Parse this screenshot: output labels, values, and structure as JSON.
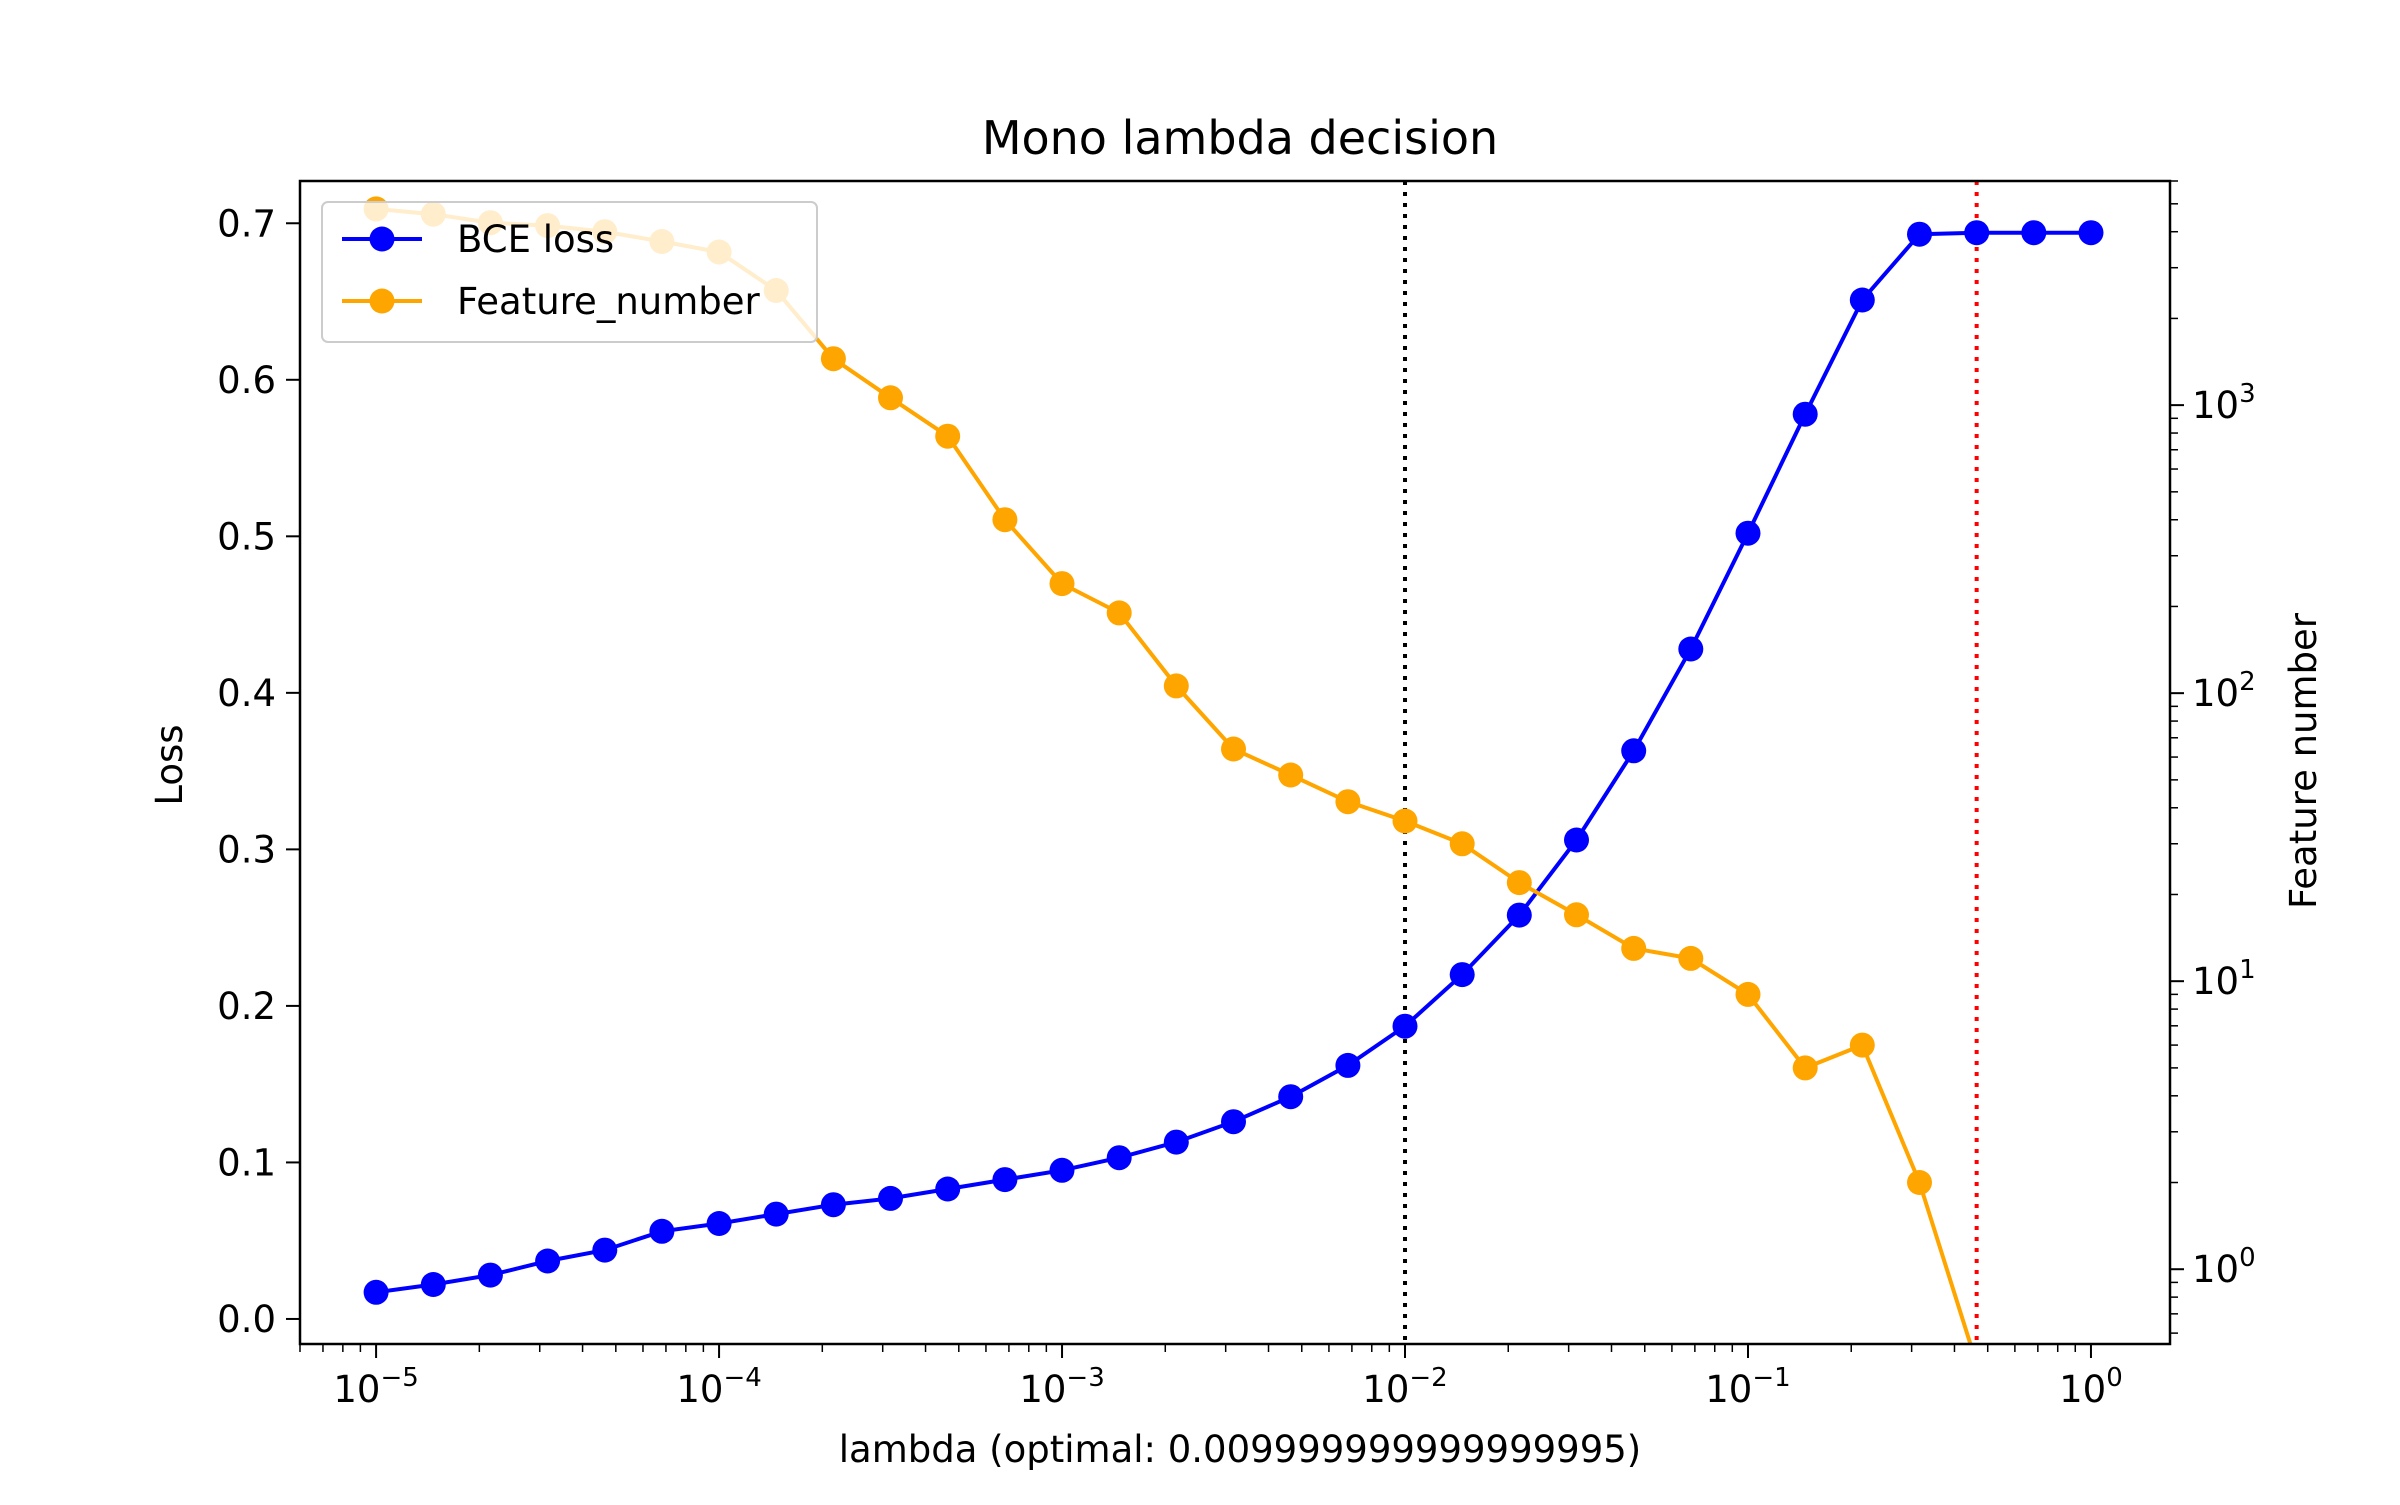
{
  "chart_data": {
    "type": "line",
    "title": "Mono lambda decision",
    "xlabel": "lambda (optimal: 0.009999999999999995)",
    "ylabel_left": "Loss",
    "ylabel_right": "Feature number",
    "xscale": "log",
    "xlim": [
      6e-06,
      1.7
    ],
    "ylim_left": [
      -0.016,
      0.727
    ],
    "yscale_right": "log",
    "ylim_right": [
      0.55,
      6000
    ],
    "x_ticks": [
      {
        "value": 1e-05,
        "base": "10",
        "exp": "−5"
      },
      {
        "value": 0.0001,
        "base": "10",
        "exp": "−4"
      },
      {
        "value": 0.001,
        "base": "10",
        "exp": "−3"
      },
      {
        "value": 0.01,
        "base": "10",
        "exp": "−2"
      },
      {
        "value": 0.1,
        "base": "10",
        "exp": "−1"
      },
      {
        "value": 1,
        "base": "10",
        "exp": "0"
      }
    ],
    "y_left_ticks": [
      {
        "value": 0.0,
        "label": "0.0"
      },
      {
        "value": 0.1,
        "label": "0.1"
      },
      {
        "value": 0.2,
        "label": "0.2"
      },
      {
        "value": 0.3,
        "label": "0.3"
      },
      {
        "value": 0.4,
        "label": "0.4"
      },
      {
        "value": 0.5,
        "label": "0.5"
      },
      {
        "value": 0.6,
        "label": "0.6"
      },
      {
        "value": 0.7,
        "label": "0.7"
      }
    ],
    "y_right_ticks": [
      {
        "value": 1,
        "base": "10",
        "exp": "0"
      },
      {
        "value": 10,
        "base": "10",
        "exp": "1"
      },
      {
        "value": 100,
        "base": "10",
        "exp": "2"
      },
      {
        "value": 1000,
        "base": "10",
        "exp": "3"
      }
    ],
    "x": [
      1e-05,
      1.468e-05,
      2.154e-05,
      3.162e-05,
      4.642e-05,
      6.813e-05,
      0.0001,
      0.0001468,
      0.0002154,
      0.0003162,
      0.0004642,
      0.0006813,
      0.001,
      0.001468,
      0.002154,
      0.003162,
      0.004642,
      0.006813,
      0.01,
      0.01468,
      0.02154,
      0.03162,
      0.04642,
      0.06813,
      0.1,
      0.1468,
      0.2154,
      0.3162,
      0.4642,
      0.6813,
      1.0
    ],
    "series": [
      {
        "name": "BCE loss",
        "axis": "left",
        "color": "#0000ff",
        "values": [
          0.017,
          0.022,
          0.028,
          0.037,
          0.044,
          0.056,
          0.061,
          0.067,
          0.073,
          0.077,
          0.083,
          0.089,
          0.095,
          0.103,
          0.113,
          0.126,
          0.142,
          0.162,
          0.187,
          0.22,
          0.258,
          0.306,
          0.363,
          0.428,
          0.502,
          0.578,
          0.651,
          0.693,
          0.694,
          0.694,
          0.694
        ]
      },
      {
        "name": "Feature_number",
        "axis": "right",
        "color": "#ffa500",
        "values": [
          4800,
          4600,
          4300,
          4200,
          4000,
          3700,
          3400,
          2500,
          1450,
          1060,
          780,
          400,
          240,
          190,
          106,
          64,
          52,
          42,
          36,
          30,
          22,
          17,
          13,
          12,
          9,
          5,
          6,
          2,
          0,
          null,
          null
        ]
      }
    ],
    "vlines": [
      {
        "x": 0.01,
        "color": "#000000",
        "style": "dotted"
      },
      {
        "x": 0.4642,
        "color": "#ff0000",
        "style": "dotted"
      }
    ],
    "legend": {
      "position": "upper-left"
    },
    "grid": false
  }
}
